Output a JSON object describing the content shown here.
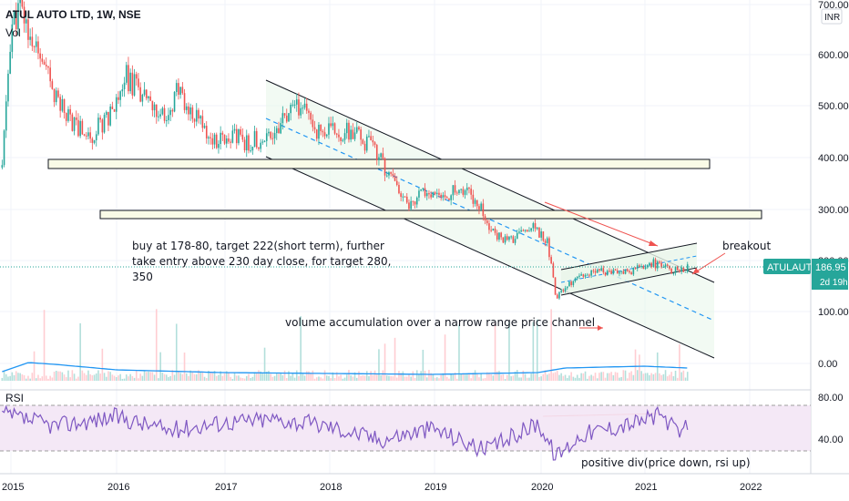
{
  "chart_data": {
    "type": "candlestick",
    "symbol_title": "ATUL AUTO LTD, 1W, NSE",
    "volume_label": "Vol",
    "currency_badge": "INR",
    "price_axis": {
      "ticks": [
        "700.00",
        "600.00",
        "500.00",
        "400.00",
        "300.00",
        "200.00",
        "100.00",
        "0.00"
      ],
      "ylim": [
        0,
        700
      ]
    },
    "rsi_axis": {
      "label": "RSI",
      "ticks": [
        "80.00",
        "40.00"
      ],
      "bands": [
        70,
        30
      ],
      "ylim": [
        20,
        90
      ]
    },
    "x_axis": {
      "ticks": [
        "2015",
        "2016",
        "2017",
        "2018",
        "2019",
        "2020",
        "2021",
        "2022"
      ]
    },
    "last_price": {
      "symbol": "ATULAUTO",
      "value": "186.95",
      "countdown": "2d 19h"
    },
    "price_path": [
      [
        "2014-12",
        380
      ],
      [
        "2015-01",
        650
      ],
      [
        "2015-02",
        690
      ],
      [
        "2015-04",
        600
      ],
      [
        "2015-06",
        520
      ],
      [
        "2015-08",
        470
      ],
      [
        "2015-10",
        440
      ],
      [
        "2015-12",
        480
      ],
      [
        "2016-02",
        560
      ],
      [
        "2016-04",
        520
      ],
      [
        "2016-06",
        470
      ],
      [
        "2016-08",
        530
      ],
      [
        "2016-10",
        480
      ],
      [
        "2016-12",
        430
      ],
      [
        "2017-02",
        440
      ],
      [
        "2017-04",
        430
      ],
      [
        "2017-06",
        440
      ],
      [
        "2017-08",
        470
      ],
      [
        "2017-10",
        500
      ],
      [
        "2017-12",
        450
      ],
      [
        "2018-02",
        450
      ],
      [
        "2018-04",
        445
      ],
      [
        "2018-06",
        420
      ],
      [
        "2018-08",
        370
      ],
      [
        "2018-10",
        310
      ],
      [
        "2018-12",
        330
      ],
      [
        "2019-02",
        320
      ],
      [
        "2019-04",
        340
      ],
      [
        "2019-06",
        320
      ],
      [
        "2019-08",
        250
      ],
      [
        "2019-10",
        240
      ],
      [
        "2019-12",
        270
      ],
      [
        "2020-02",
        240
      ],
      [
        "2020-03",
        130
      ],
      [
        "2020-05",
        160
      ],
      [
        "2020-08",
        180
      ],
      [
        "2020-11",
        175
      ],
      [
        "2021-02",
        195
      ],
      [
        "2021-04",
        180
      ],
      [
        "2021-06",
        187
      ]
    ],
    "rsi_path": [
      [
        "2014-12",
        62
      ],
      [
        "2015-06",
        52
      ],
      [
        "2016-01",
        60
      ],
      [
        "2016-07",
        48
      ],
      [
        "2017-01",
        55
      ],
      [
        "2017-07",
        58
      ],
      [
        "2018-01",
        52
      ],
      [
        "2018-07",
        40
      ],
      [
        "2019-01",
        50
      ],
      [
        "2019-07",
        30
      ],
      [
        "2020-01",
        55
      ],
      [
        "2020-03",
        25
      ],
      [
        "2020-06",
        45
      ],
      [
        "2020-12",
        55
      ],
      [
        "2021-03",
        62
      ],
      [
        "2021-05",
        44
      ],
      [
        "2021-06",
        52
      ]
    ],
    "volume_avg_path": [
      [
        "2014-12",
        10
      ],
      [
        "2015-03",
        20
      ],
      [
        "2015-06",
        18
      ],
      [
        "2016-01",
        12
      ],
      [
        "2017-01",
        9
      ],
      [
        "2018-01",
        8
      ],
      [
        "2019-01",
        7
      ],
      [
        "2020-01",
        9
      ],
      [
        "2020-04",
        14
      ],
      [
        "2021-01",
        16
      ],
      [
        "2021-06",
        14
      ]
    ],
    "annotations": [
      "buy at 178-80, target 222(short term), further",
      "take entry above 230 day close, for target 280,",
      "350",
      "breakout",
      "volume accumulation over a narrow range price channel",
      "positive div(price down, rsi up)"
    ],
    "colors": {
      "up": "#26a69a",
      "down": "#ef5350",
      "rsi": "#7e57c2",
      "accent": "#26a69a"
    }
  }
}
